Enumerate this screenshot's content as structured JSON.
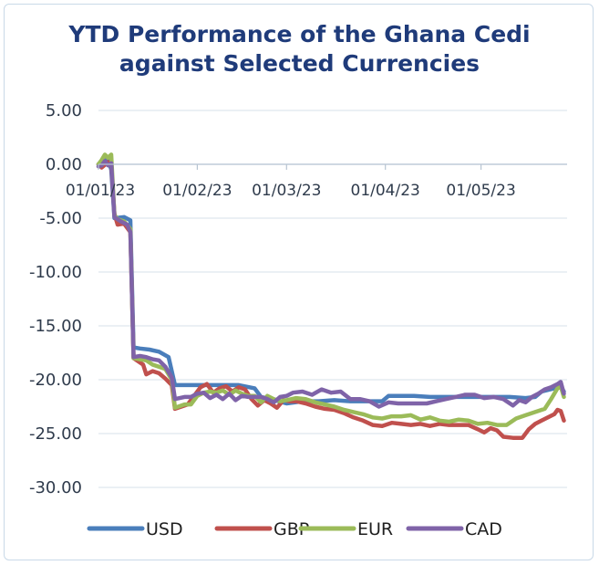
{
  "chart_data": {
    "type": "line",
    "title_line1": "YTD Performance of the Ghana Cedi",
    "title_line2": "against Selected Currencies",
    "xlabel": "",
    "ylabel": "",
    "ylim": [
      -30,
      5
    ],
    "y_ticks": [
      "5.00",
      "0.00",
      "-5.00",
      "-10.00",
      "-15.00",
      "-20.00",
      "-25.00",
      "-30.00"
    ],
    "y_tick_values": [
      5,
      0,
      -5,
      -10,
      -15,
      -20,
      -25,
      -30
    ],
    "x_ticks": [
      {
        "label": "01/01/23",
        "day": 1
      },
      {
        "label": "01/02/23",
        "day": 32
      },
      {
        "label": "01/03/23",
        "day": 60
      },
      {
        "label": "01/04/23",
        "day": 91
      },
      {
        "label": "01/05/23",
        "day": 121
      }
    ],
    "xlim": [
      1,
      148
    ],
    "grid": true,
    "legend_position": "bottom",
    "series": [
      {
        "name": "USD",
        "color": "#4a7ebb",
        "points": [
          [
            1,
            0
          ],
          [
            3,
            0.3
          ],
          [
            4,
            0.5
          ],
          [
            5,
            -0.5
          ],
          [
            6,
            -5
          ],
          [
            9,
            -4.9
          ],
          [
            11,
            -5.2
          ],
          [
            12,
            -17
          ],
          [
            14,
            -17.1
          ],
          [
            17,
            -17.2
          ],
          [
            20,
            -17.4
          ],
          [
            23,
            -17.9
          ],
          [
            25,
            -20.5
          ],
          [
            30,
            -20.5
          ],
          [
            35,
            -20.5
          ],
          [
            40,
            -20.5
          ],
          [
            45,
            -20.5
          ],
          [
            50,
            -20.8
          ],
          [
            52,
            -21.6
          ],
          [
            55,
            -21.8
          ],
          [
            60,
            -22.2
          ],
          [
            65,
            -22
          ],
          [
            70,
            -22
          ],
          [
            75,
            -21.9
          ],
          [
            80,
            -22
          ],
          [
            85,
            -22
          ],
          [
            90,
            -22
          ],
          [
            92,
            -21.5
          ],
          [
            96,
            -21.5
          ],
          [
            100,
            -21.5
          ],
          [
            105,
            -21.6
          ],
          [
            110,
            -21.6
          ],
          [
            115,
            -21.6
          ],
          [
            120,
            -21.6
          ],
          [
            125,
            -21.6
          ],
          [
            130,
            -21.6
          ],
          [
            135,
            -21.7
          ],
          [
            138,
            -21.6
          ],
          [
            140,
            -21.1
          ],
          [
            144,
            -20.8
          ],
          [
            146,
            -20.6
          ],
          [
            147,
            -21.1
          ]
        ]
      },
      {
        "name": "GBP",
        "color": "#c0504d",
        "points": [
          [
            1,
            0
          ],
          [
            2,
            -0.3
          ],
          [
            4,
            0.2
          ],
          [
            5,
            0
          ],
          [
            6,
            -4.6
          ],
          [
            7,
            -5.6
          ],
          [
            9,
            -5.5
          ],
          [
            11,
            -6.3
          ],
          [
            12,
            -18
          ],
          [
            13,
            -18.2
          ],
          [
            15,
            -18.6
          ],
          [
            16,
            -19.5
          ],
          [
            18,
            -19.2
          ],
          [
            20,
            -19.4
          ],
          [
            22,
            -19.9
          ],
          [
            24,
            -20.5
          ],
          [
            25,
            -22.7
          ],
          [
            27,
            -22.5
          ],
          [
            29,
            -22.3
          ],
          [
            31,
            -21.5
          ],
          [
            33,
            -20.7
          ],
          [
            35,
            -20.4
          ],
          [
            37,
            -21.2
          ],
          [
            39,
            -20.8
          ],
          [
            41,
            -20.6
          ],
          [
            43,
            -21.1
          ],
          [
            45,
            -20.7
          ],
          [
            47,
            -20.9
          ],
          [
            49,
            -21.8
          ],
          [
            51,
            -22.4
          ],
          [
            53,
            -21.9
          ],
          [
            55,
            -22.2
          ],
          [
            57,
            -22.6
          ],
          [
            59,
            -21.9
          ],
          [
            61,
            -22
          ],
          [
            63,
            -22
          ],
          [
            66,
            -22.2
          ],
          [
            69,
            -22.5
          ],
          [
            72,
            -22.7
          ],
          [
            75,
            -22.8
          ],
          [
            78,
            -23.1
          ],
          [
            81,
            -23.5
          ],
          [
            84,
            -23.8
          ],
          [
            87,
            -24.2
          ],
          [
            90,
            -24.3
          ],
          [
            93,
            -24
          ],
          [
            96,
            -24.1
          ],
          [
            99,
            -24.2
          ],
          [
            102,
            -24.1
          ],
          [
            105,
            -24.3
          ],
          [
            108,
            -24.1
          ],
          [
            111,
            -24.2
          ],
          [
            114,
            -24.2
          ],
          [
            117,
            -24.2
          ],
          [
            120,
            -24.6
          ],
          [
            122,
            -24.9
          ],
          [
            124,
            -24.5
          ],
          [
            126,
            -24.7
          ],
          [
            128,
            -25.3
          ],
          [
            131,
            -25.4
          ],
          [
            134,
            -25.4
          ],
          [
            136,
            -24.6
          ],
          [
            138,
            -24.1
          ],
          [
            140,
            -23.8
          ],
          [
            142,
            -23.5
          ],
          [
            144,
            -23.2
          ],
          [
            145,
            -22.8
          ],
          [
            146,
            -22.9
          ],
          [
            147,
            -23.8
          ]
        ]
      },
      {
        "name": "EUR",
        "color": "#9bbb59",
        "points": [
          [
            1,
            0
          ],
          [
            2,
            0.4
          ],
          [
            3,
            0.9
          ],
          [
            4,
            0.6
          ],
          [
            5,
            0.9
          ],
          [
            6,
            -4.7
          ],
          [
            7,
            -5.1
          ],
          [
            9,
            -5.3
          ],
          [
            11,
            -6
          ],
          [
            12,
            -18
          ],
          [
            14,
            -18.1
          ],
          [
            16,
            -18.2
          ],
          [
            18,
            -18.6
          ],
          [
            20,
            -18.8
          ],
          [
            22,
            -19
          ],
          [
            24,
            -20
          ],
          [
            25,
            -22.6
          ],
          [
            28,
            -22.3
          ],
          [
            30,
            -22.3
          ],
          [
            32,
            -21.5
          ],
          [
            34,
            -21.2
          ],
          [
            36,
            -21.1
          ],
          [
            38,
            -21.2
          ],
          [
            40,
            -21
          ],
          [
            42,
            -21.4
          ],
          [
            44,
            -21
          ],
          [
            46,
            -21.3
          ],
          [
            48,
            -21.5
          ],
          [
            50,
            -21.5
          ],
          [
            52,
            -22.1
          ],
          [
            54,
            -21.5
          ],
          [
            56,
            -21.8
          ],
          [
            58,
            -22
          ],
          [
            60,
            -21.9
          ],
          [
            63,
            -21.7
          ],
          [
            66,
            -21.8
          ],
          [
            69,
            -22.1
          ],
          [
            72,
            -22.3
          ],
          [
            75,
            -22.5
          ],
          [
            78,
            -22.8
          ],
          [
            81,
            -23
          ],
          [
            84,
            -23.2
          ],
          [
            87,
            -23.5
          ],
          [
            90,
            -23.6
          ],
          [
            93,
            -23.4
          ],
          [
            96,
            -23.4
          ],
          [
            99,
            -23.3
          ],
          [
            102,
            -23.7
          ],
          [
            105,
            -23.5
          ],
          [
            108,
            -23.8
          ],
          [
            111,
            -23.9
          ],
          [
            114,
            -23.7
          ],
          [
            117,
            -23.8
          ],
          [
            120,
            -24.1
          ],
          [
            123,
            -24
          ],
          [
            126,
            -24.2
          ],
          [
            129,
            -24.2
          ],
          [
            132,
            -23.6
          ],
          [
            135,
            -23.3
          ],
          [
            138,
            -23
          ],
          [
            141,
            -22.7
          ],
          [
            143,
            -21.8
          ],
          [
            145,
            -20.8
          ],
          [
            146,
            -20.6
          ],
          [
            147,
            -21.6
          ]
        ]
      },
      {
        "name": "CAD",
        "color": "#7f63a8",
        "points": [
          [
            1,
            -0.2
          ],
          [
            2,
            -0.1
          ],
          [
            3,
            0.3
          ],
          [
            4,
            -0.1
          ],
          [
            5,
            0.1
          ],
          [
            6,
            -4.9
          ],
          [
            8,
            -5.3
          ],
          [
            10,
            -5.6
          ],
          [
            11,
            -6.3
          ],
          [
            12,
            -17.9
          ],
          [
            14,
            -17.8
          ],
          [
            16,
            -17.9
          ],
          [
            18,
            -18.1
          ],
          [
            20,
            -18.2
          ],
          [
            22,
            -18.8
          ],
          [
            24,
            -19.8
          ],
          [
            25,
            -21.8
          ],
          [
            28,
            -21.6
          ],
          [
            30,
            -21.6
          ],
          [
            32,
            -21.3
          ],
          [
            34,
            -21.2
          ],
          [
            36,
            -21.7
          ],
          [
            38,
            -21.4
          ],
          [
            40,
            -21.8
          ],
          [
            42,
            -21.3
          ],
          [
            44,
            -21.9
          ],
          [
            46,
            -21.5
          ],
          [
            48,
            -21.6
          ],
          [
            50,
            -21.6
          ],
          [
            52,
            -21.6
          ],
          [
            54,
            -21.8
          ],
          [
            56,
            -22.1
          ],
          [
            58,
            -21.6
          ],
          [
            60,
            -21.5
          ],
          [
            62,
            -21.2
          ],
          [
            65,
            -21.1
          ],
          [
            68,
            -21.4
          ],
          [
            71,
            -20.9
          ],
          [
            74,
            -21.2
          ],
          [
            77,
            -21.1
          ],
          [
            80,
            -21.8
          ],
          [
            83,
            -21.8
          ],
          [
            86,
            -22
          ],
          [
            89,
            -22.5
          ],
          [
            92,
            -22.1
          ],
          [
            95,
            -22.2
          ],
          [
            98,
            -22.2
          ],
          [
            101,
            -22.2
          ],
          [
            104,
            -22.2
          ],
          [
            107,
            -22
          ],
          [
            110,
            -21.8
          ],
          [
            113,
            -21.6
          ],
          [
            116,
            -21.4
          ],
          [
            119,
            -21.4
          ],
          [
            122,
            -21.7
          ],
          [
            125,
            -21.6
          ],
          [
            128,
            -21.8
          ],
          [
            131,
            -22.4
          ],
          [
            133,
            -21.9
          ],
          [
            135,
            -22.1
          ],
          [
            137,
            -21.6
          ],
          [
            139,
            -21.3
          ],
          [
            141,
            -20.9
          ],
          [
            143,
            -20.7
          ],
          [
            145,
            -20.4
          ],
          [
            146,
            -20.2
          ],
          [
            147,
            -21.3
          ]
        ]
      }
    ]
  }
}
